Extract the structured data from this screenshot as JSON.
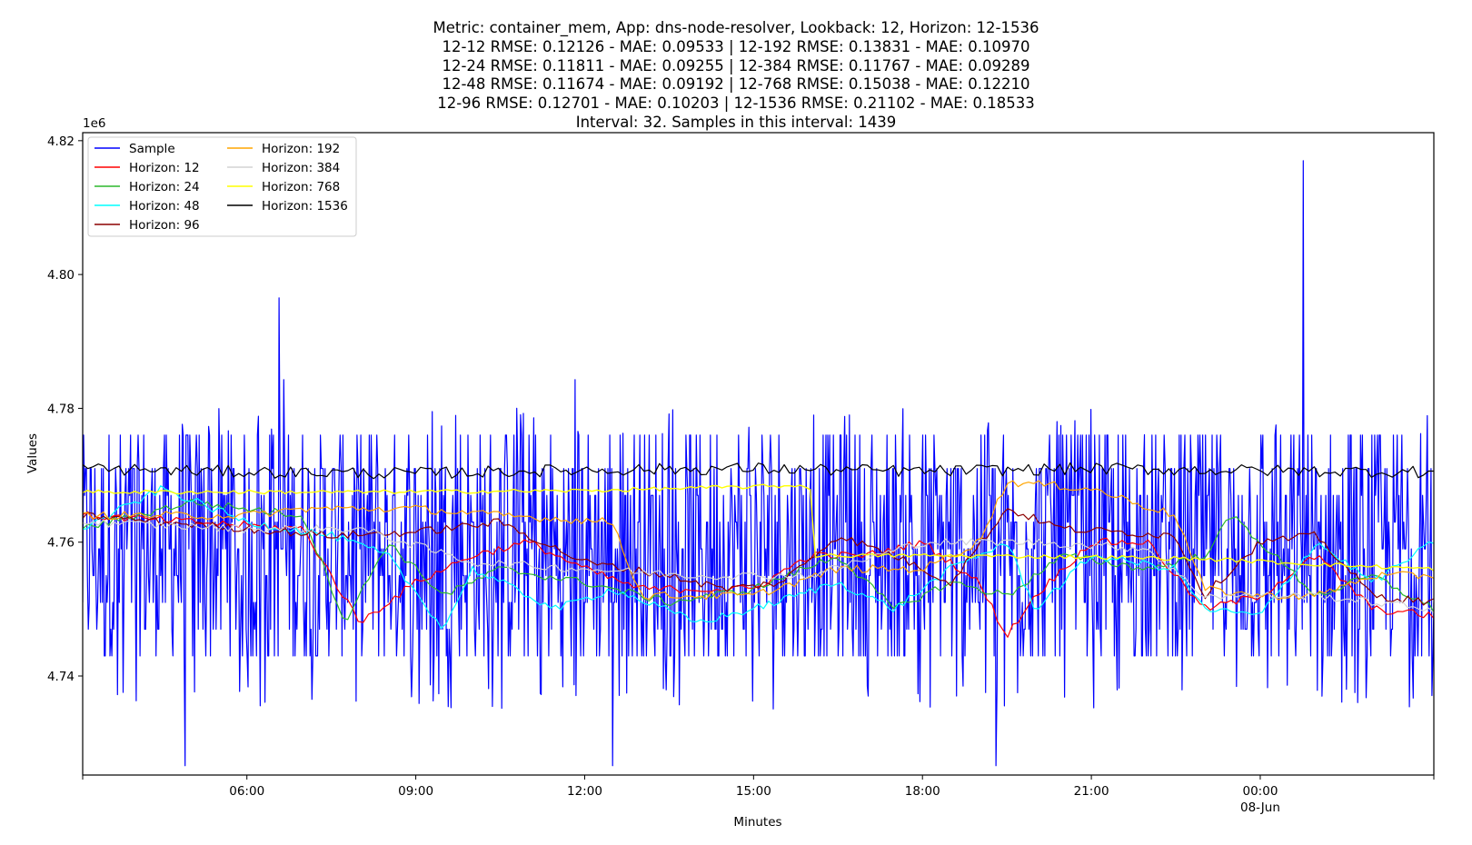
{
  "chart_data": {
    "type": "line",
    "title_lines": [
      "Metric: container_mem, App: dns-node-resolver, Lookback: 12, Horizon: 12-1536",
      "12-12 RMSE: 0.12126 - MAE: 0.09533 | 12-192 RMSE: 0.13831 - MAE: 0.10970",
      "12-24 RMSE: 0.11811 - MAE: 0.09255 | 12-384 RMSE: 0.11767 - MAE: 0.09289",
      "12-48 RMSE: 0.11674 - MAE: 0.09192 | 12-768 RMSE: 0.15038 - MAE: 0.12210",
      "12-96 RMSE: 0.12701 - MAE: 0.10203 | 12-1536 RMSE: 0.21102 - MAE: 0.18533",
      "Interval: 32. Samples in this interval: 1439"
    ],
    "xlabel": "Minutes",
    "ylabel": "Values",
    "y_offset_label": "1e6",
    "xlim": [
      "2024-06-07 03:05",
      "2024-06-08 03:05"
    ],
    "ylim": [
      4725200,
      4821200
    ],
    "x_ticks": [
      {
        "value": "2024-06-07 06:00",
        "label": "06:00"
      },
      {
        "value": "2024-06-07 09:00",
        "label": "09:00"
      },
      {
        "value": "2024-06-07 12:00",
        "label": "12:00"
      },
      {
        "value": "2024-06-07 15:00",
        "label": "15:00"
      },
      {
        "value": "2024-06-07 18:00",
        "label": "18:00"
      },
      {
        "value": "2024-06-07 21:00",
        "label": "21:00"
      },
      {
        "value": "2024-06-08 00:00",
        "label": "00:00",
        "sublabel": "08-Jun"
      }
    ],
    "y_ticks": [
      4740000,
      4760000,
      4780000,
      4800000,
      4820000
    ],
    "y_tick_labels": [
      "4.74",
      "4.76",
      "4.78",
      "4.80",
      "4.82"
    ],
    "legend": {
      "location": "upper-left",
      "columns": 2
    },
    "grid": false,
    "series": [
      {
        "name": "Sample",
        "color": "#0000ff",
        "width": 1.2,
        "kind": "sample",
        "base": 4759000,
        "spikes": [
          {
            "x": "2024-06-07 04:54",
            "y": 4726600
          },
          {
            "x": "2024-06-07 06:34",
            "y": 4796500
          },
          {
            "x": "2024-06-07 06:39",
            "y": 4784300
          },
          {
            "x": "2024-06-07 10:48",
            "y": 4780000
          },
          {
            "x": "2024-06-07 11:50",
            "y": 4784300
          },
          {
            "x": "2024-06-07 12:30",
            "y": 4726600
          },
          {
            "x": "2024-06-07 19:18",
            "y": 4726600
          },
          {
            "x": "2024-06-08 00:46",
            "y": 4817000
          }
        ]
      },
      {
        "name": "Horizon: 12",
        "color": "#ff0000",
        "width": 1.2,
        "kind": "steps",
        "anchors": [
          [
            "2024-06-07 03:05",
            4764000
          ],
          [
            "2024-06-07 07:00",
            4762000
          ],
          [
            "2024-06-07 08:00",
            4748000
          ],
          [
            "2024-06-07 09:00",
            4754000
          ],
          [
            "2024-06-07 10:00",
            4758000
          ],
          [
            "2024-06-07 11:00",
            4760000
          ],
          [
            "2024-06-07 12:00",
            4756000
          ],
          [
            "2024-06-07 13:00",
            4753000
          ],
          [
            "2024-06-07 15:00",
            4753000
          ],
          [
            "2024-06-07 16:00",
            4758000
          ],
          [
            "2024-06-07 17:00",
            4758000
          ],
          [
            "2024-06-07 18:00",
            4760000
          ],
          [
            "2024-06-07 19:00",
            4754000
          ],
          [
            "2024-06-07 19:30",
            4746000
          ],
          [
            "2024-06-07 20:00",
            4752000
          ],
          [
            "2024-06-07 21:00",
            4760000
          ],
          [
            "2024-06-07 22:00",
            4760000
          ],
          [
            "2024-06-07 23:00",
            4750000
          ],
          [
            "2024-06-08 00:00",
            4752000
          ],
          [
            "2024-06-08 01:00",
            4758000
          ],
          [
            "2024-06-08 02:00",
            4750000
          ],
          [
            "2024-06-08 03:05",
            4749000
          ]
        ]
      },
      {
        "name": "Horizon: 24",
        "color": "#2db82d",
        "width": 1.2,
        "kind": "steps",
        "anchors": [
          [
            "2024-06-07 03:05",
            4762000
          ],
          [
            "2024-06-07 05:00",
            4766000
          ],
          [
            "2024-06-07 07:00",
            4764000
          ],
          [
            "2024-06-07 07:45",
            4748000
          ],
          [
            "2024-06-07 08:30",
            4760000
          ],
          [
            "2024-06-07 09:30",
            4752000
          ],
          [
            "2024-06-07 10:30",
            4756000
          ],
          [
            "2024-06-07 12:00",
            4754000
          ],
          [
            "2024-06-07 13:30",
            4751000
          ],
          [
            "2024-06-07 15:00",
            4753000
          ],
          [
            "2024-06-07 16:30",
            4758000
          ],
          [
            "2024-06-07 17:30",
            4750000
          ],
          [
            "2024-06-07 18:30",
            4754000
          ],
          [
            "2024-06-07 19:30",
            4752000
          ],
          [
            "2024-06-07 20:30",
            4758000
          ],
          [
            "2024-06-07 22:00",
            4756000
          ],
          [
            "2024-06-07 23:00",
            4758000
          ],
          [
            "2024-06-07 23:30",
            4764000
          ],
          [
            "2024-06-08 00:00",
            4760000
          ],
          [
            "2024-06-08 01:00",
            4752000
          ],
          [
            "2024-06-08 02:00",
            4755000
          ],
          [
            "2024-06-08 03:05",
            4750000
          ]
        ]
      },
      {
        "name": "Horizon: 48",
        "color": "#00ffff",
        "width": 1.2,
        "kind": "steps",
        "anchors": [
          [
            "2024-06-07 03:05",
            4762000
          ],
          [
            "2024-06-07 04:30",
            4768000
          ],
          [
            "2024-06-07 06:00",
            4763000
          ],
          [
            "2024-06-07 07:30",
            4761000
          ],
          [
            "2024-06-07 08:30",
            4758000
          ],
          [
            "2024-06-07 09:30",
            4747000
          ],
          [
            "2024-06-07 10:00",
            4756000
          ],
          [
            "2024-06-07 11:30",
            4750000
          ],
          [
            "2024-06-07 12:30",
            4753000
          ],
          [
            "2024-06-07 14:00",
            4748000
          ],
          [
            "2024-06-07 15:00",
            4750000
          ],
          [
            "2024-06-07 16:30",
            4754000
          ],
          [
            "2024-06-07 17:30",
            4750000
          ],
          [
            "2024-06-07 18:30",
            4756000
          ],
          [
            "2024-06-07 19:30",
            4760000
          ],
          [
            "2024-06-07 20:00",
            4750000
          ],
          [
            "2024-06-07 21:00",
            4758000
          ],
          [
            "2024-06-07 22:30",
            4756000
          ],
          [
            "2024-06-07 23:00",
            4750000
          ],
          [
            "2024-06-08 00:00",
            4749000
          ],
          [
            "2024-06-08 01:00",
            4760000
          ],
          [
            "2024-06-08 02:00",
            4754000
          ],
          [
            "2024-06-08 03:05",
            4760000
          ]
        ]
      },
      {
        "name": "Horizon: 96",
        "color": "#8b0000",
        "width": 1.2,
        "kind": "steps",
        "anchors": [
          [
            "2024-06-07 03:05",
            4764000
          ],
          [
            "2024-06-07 06:00",
            4762000
          ],
          [
            "2024-06-07 07:30",
            4761000
          ],
          [
            "2024-06-07 09:00",
            4761500
          ],
          [
            "2024-06-07 10:30",
            4763000
          ],
          [
            "2024-06-07 12:00",
            4757000
          ],
          [
            "2024-06-07 13:30",
            4755000
          ],
          [
            "2024-06-07 14:30",
            4753000
          ],
          [
            "2024-06-07 15:30",
            4754000
          ],
          [
            "2024-06-07 16:30",
            4761000
          ],
          [
            "2024-06-07 17:30",
            4758000
          ],
          [
            "2024-06-07 18:30",
            4754000
          ],
          [
            "2024-06-07 19:30",
            4765000
          ],
          [
            "2024-06-07 20:30",
            4762000
          ],
          [
            "2024-06-07 22:30",
            4761000
          ],
          [
            "2024-06-07 23:00",
            4752000
          ],
          [
            "2024-06-08 00:00",
            4760000
          ],
          [
            "2024-06-08 01:00",
            4761000
          ],
          [
            "2024-06-08 02:00",
            4752000
          ],
          [
            "2024-06-08 03:05",
            4751000
          ]
        ]
      },
      {
        "name": "Horizon: 192",
        "color": "#ffa500",
        "width": 1.2,
        "kind": "steps",
        "anchors": [
          [
            "2024-06-07 03:05",
            4764000
          ],
          [
            "2024-06-07 06:00",
            4764000
          ],
          [
            "2024-06-07 07:00",
            4765000
          ],
          [
            "2024-06-07 09:00",
            4765000
          ],
          [
            "2024-06-07 10:30",
            4764000
          ],
          [
            "2024-06-07 12:30",
            4763000
          ],
          [
            "2024-06-07 13:00",
            4752000
          ],
          [
            "2024-06-07 15:00",
            4752000
          ],
          [
            "2024-06-07 16:30",
            4756000
          ],
          [
            "2024-06-07 18:00",
            4756000
          ],
          [
            "2024-06-07 19:00",
            4760000
          ],
          [
            "2024-06-07 19:30",
            4769000
          ],
          [
            "2024-06-07 21:00",
            4768000
          ],
          [
            "2024-06-07 22:30",
            4764000
          ],
          [
            "2024-06-07 23:00",
            4753000
          ],
          [
            "2024-06-08 00:00",
            4752000
          ],
          [
            "2024-06-08 01:00",
            4752000
          ],
          [
            "2024-06-08 02:00",
            4755000
          ],
          [
            "2024-06-08 03:05",
            4755000
          ]
        ]
      },
      {
        "name": "Horizon: 384",
        "color": "#d3d3d3",
        "width": 1.2,
        "kind": "steps",
        "anchors": [
          [
            "2024-06-07 03:05",
            4763000
          ],
          [
            "2024-06-07 06:00",
            4762000
          ],
          [
            "2024-06-07 08:00",
            4762000
          ],
          [
            "2024-06-07 10:00",
            4757000
          ],
          [
            "2024-06-07 12:00",
            4756000
          ],
          [
            "2024-06-07 14:00",
            4755000
          ],
          [
            "2024-06-07 16:00",
            4755000
          ],
          [
            "2024-06-07 18:00",
            4760000
          ],
          [
            "2024-06-07 20:00",
            4760000
          ],
          [
            "2024-06-07 22:00",
            4759000
          ],
          [
            "2024-06-07 23:00",
            4752000
          ],
          [
            "2024-06-08 01:00",
            4752000
          ],
          [
            "2024-06-08 03:05",
            4750000
          ]
        ]
      },
      {
        "name": "Horizon: 768",
        "color": "#ffff00",
        "width": 1.4,
        "kind": "steps",
        "anchors": [
          [
            "2024-06-07 03:05",
            4767500
          ],
          [
            "2024-06-07 08:00",
            4767500
          ],
          [
            "2024-06-07 12:00",
            4767700
          ],
          [
            "2024-06-07 16:00",
            4768500
          ],
          [
            "2024-06-07 16:05",
            4758000
          ],
          [
            "2024-06-07 18:00",
            4758000
          ],
          [
            "2024-06-07 21:00",
            4757800
          ],
          [
            "2024-06-07 23:00",
            4757500
          ],
          [
            "2024-06-08 01:00",
            4756700
          ],
          [
            "2024-06-08 03:05",
            4756000
          ]
        ]
      },
      {
        "name": "Horizon: 1536",
        "color": "#000000",
        "width": 1.2,
        "kind": "steps",
        "anchors": [
          [
            "2024-06-07 03:05",
            4771000
          ],
          [
            "2024-06-07 06:00",
            4770500
          ],
          [
            "2024-06-07 09:00",
            4770300
          ],
          [
            "2024-06-07 12:00",
            4770800
          ],
          [
            "2024-06-07 15:00",
            4771000
          ],
          [
            "2024-06-07 18:00",
            4770600
          ],
          [
            "2024-06-07 21:00",
            4771000
          ],
          [
            "2024-06-08 00:00",
            4770700
          ],
          [
            "2024-06-08 03:05",
            4770500
          ]
        ]
      }
    ]
  }
}
